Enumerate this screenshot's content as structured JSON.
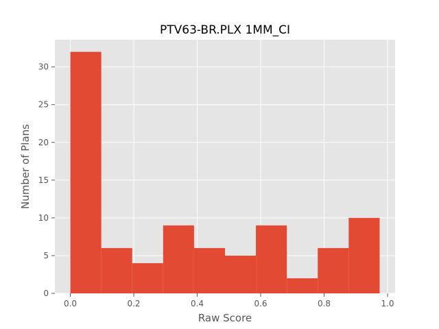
{
  "chart_data": {
    "type": "bar",
    "title": "PTV63-BR.PLX 1MM_CI",
    "xlabel": "Raw Score",
    "ylabel": "Number of Plans",
    "bin_edges": [
      0.0,
      0.0975,
      0.195,
      0.2925,
      0.39,
      0.4875,
      0.585,
      0.6825,
      0.78,
      0.8775,
      0.975
    ],
    "values": [
      32,
      6,
      4,
      9,
      6,
      5,
      9,
      2,
      6,
      10
    ],
    "xlim": [
      -0.04875,
      1.02375
    ],
    "ylim": [
      0,
      33.6
    ],
    "xticks": [
      0.0,
      0.2,
      0.4,
      0.6,
      0.8,
      1.0
    ],
    "xtick_labels": [
      "0.0",
      "0.2",
      "0.4",
      "0.6",
      "0.8",
      "1.0"
    ],
    "yticks": [
      0,
      5,
      10,
      15,
      20,
      25,
      30
    ],
    "ytick_labels": [
      "0",
      "5",
      "10",
      "15",
      "20",
      "25",
      "30"
    ],
    "grid": true,
    "bar_color": "#E24A33",
    "plot_background": "#E5E5E5",
    "grid_color": "#FFFFFF"
  }
}
